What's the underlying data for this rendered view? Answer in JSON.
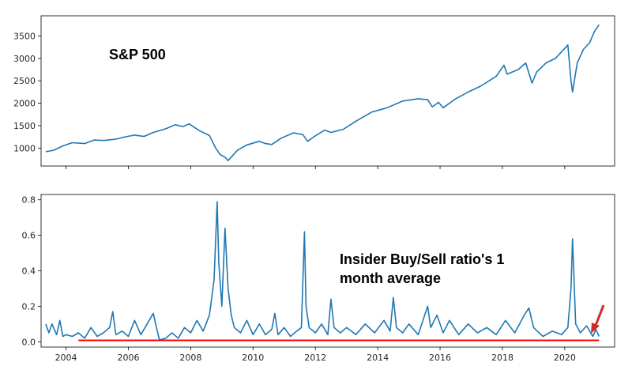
{
  "chart_data": [
    {
      "type": "line",
      "annotation": "S&P 500",
      "xlim": [
        2003.2,
        2021.6
      ],
      "ylim": [
        600,
        3950
      ],
      "y_ticks": [
        1000,
        1500,
        2000,
        2500,
        3000,
        3500
      ],
      "y_tick_labels": [
        "1000",
        "1500",
        "2000",
        "2500",
        "3000",
        "3500"
      ],
      "series": [
        {
          "color": "#1f77b4",
          "x": [
            2003.35,
            2003.6,
            2003.9,
            2004.2,
            2004.6,
            2004.9,
            2005.2,
            2005.6,
            2005.9,
            2006.2,
            2006.5,
            2006.8,
            2007.2,
            2007.5,
            2007.75,
            2007.95,
            2008.3,
            2008.6,
            2008.8,
            2008.95,
            2009.1,
            2009.2,
            2009.5,
            2009.8,
            2010.2,
            2010.4,
            2010.6,
            2010.9,
            2011.3,
            2011.6,
            2011.75,
            2011.95,
            2012.3,
            2012.5,
            2012.9,
            2013.3,
            2013.8,
            2014.3,
            2014.8,
            2015.3,
            2015.6,
            2015.75,
            2015.95,
            2016.1,
            2016.5,
            2016.9,
            2017.3,
            2017.8,
            2018.05,
            2018.15,
            2018.5,
            2018.75,
            2018.95,
            2019.1,
            2019.4,
            2019.7,
            2020.1,
            2020.2,
            2020.25,
            2020.4,
            2020.6,
            2020.8,
            2020.95,
            2021.1
          ],
          "values": [
            920,
            950,
            1050,
            1120,
            1100,
            1180,
            1170,
            1200,
            1250,
            1290,
            1260,
            1350,
            1430,
            1520,
            1480,
            1540,
            1380,
            1280,
            1000,
            850,
            800,
            720,
            950,
            1070,
            1150,
            1100,
            1080,
            1220,
            1340,
            1300,
            1150,
            1250,
            1400,
            1350,
            1420,
            1600,
            1800,
            1900,
            2050,
            2100,
            2080,
            1920,
            2020,
            1900,
            2100,
            2250,
            2380,
            2600,
            2850,
            2650,
            2750,
            2900,
            2450,
            2700,
            2900,
            3000,
            3300,
            2500,
            2250,
            2900,
            3200,
            3350,
            3600,
            3750
          ]
        }
      ]
    },
    {
      "type": "line",
      "annotation": "Insider Buy/Sell ratio's 1 month average",
      "xlim": [
        2003.2,
        2021.6
      ],
      "ylim": [
        -0.03,
        0.83
      ],
      "x_ticks": [
        2004,
        2006,
        2008,
        2010,
        2012,
        2014,
        2016,
        2018,
        2020
      ],
      "x_tick_labels": [
        "2004",
        "2006",
        "2008",
        "2010",
        "2012",
        "2014",
        "2016",
        "2018",
        "2020"
      ],
      "y_ticks": [
        0.0,
        0.2,
        0.4,
        0.6,
        0.8
      ],
      "y_tick_labels": [
        "0.0",
        "0.2",
        "0.4",
        "0.6",
        "0.8"
      ],
      "series": [
        {
          "color": "#1f77b4",
          "x": [
            2003.35,
            2003.45,
            2003.55,
            2003.7,
            2003.8,
            2003.9,
            2004.0,
            2004.2,
            2004.4,
            2004.6,
            2004.8,
            2005.0,
            2005.2,
            2005.4,
            2005.5,
            2005.6,
            2005.8,
            2006.0,
            2006.2,
            2006.4,
            2006.6,
            2006.8,
            2006.9,
            2007.0,
            2007.2,
            2007.4,
            2007.6,
            2007.8,
            2008.0,
            2008.2,
            2008.4,
            2008.6,
            2008.75,
            2008.85,
            2008.9,
            2009.0,
            2009.1,
            2009.2,
            2009.3,
            2009.4,
            2009.6,
            2009.8,
            2010.0,
            2010.2,
            2010.4,
            2010.6,
            2010.7,
            2010.8,
            2011.0,
            2011.2,
            2011.4,
            2011.55,
            2011.65,
            2011.7,
            2011.8,
            2012.0,
            2012.2,
            2012.4,
            2012.5,
            2012.6,
            2012.8,
            2013.0,
            2013.3,
            2013.6,
            2013.9,
            2014.2,
            2014.4,
            2014.5,
            2014.6,
            2014.8,
            2015.0,
            2015.3,
            2015.6,
            2015.7,
            2015.9,
            2016.1,
            2016.3,
            2016.6,
            2016.9,
            2017.2,
            2017.5,
            2017.8,
            2018.1,
            2018.4,
            2018.7,
            2018.85,
            2019.0,
            2019.3,
            2019.6,
            2019.9,
            2020.1,
            2020.2,
            2020.25,
            2020.35,
            2020.5,
            2020.7,
            2020.9,
            2021.0,
            2021.1
          ],
          "values": [
            0.1,
            0.05,
            0.1,
            0.04,
            0.12,
            0.03,
            0.04,
            0.03,
            0.05,
            0.02,
            0.08,
            0.03,
            0.05,
            0.08,
            0.17,
            0.04,
            0.06,
            0.03,
            0.12,
            0.04,
            0.1,
            0.16,
            0.08,
            0.01,
            0.02,
            0.05,
            0.02,
            0.08,
            0.05,
            0.12,
            0.06,
            0.15,
            0.35,
            0.79,
            0.45,
            0.2,
            0.64,
            0.3,
            0.15,
            0.08,
            0.05,
            0.12,
            0.04,
            0.1,
            0.04,
            0.07,
            0.16,
            0.04,
            0.08,
            0.03,
            0.06,
            0.08,
            0.62,
            0.2,
            0.08,
            0.05,
            0.1,
            0.04,
            0.24,
            0.08,
            0.05,
            0.08,
            0.04,
            0.1,
            0.05,
            0.12,
            0.06,
            0.25,
            0.08,
            0.05,
            0.1,
            0.04,
            0.2,
            0.08,
            0.15,
            0.05,
            0.12,
            0.04,
            0.1,
            0.05,
            0.08,
            0.04,
            0.12,
            0.05,
            0.15,
            0.19,
            0.08,
            0.03,
            0.06,
            0.04,
            0.08,
            0.3,
            0.58,
            0.1,
            0.05,
            0.09,
            0.03,
            0.07,
            0.03
          ]
        },
        {
          "color": "#ff0000",
          "x": [
            2004.4,
            2021.1
          ],
          "values": [
            0.008,
            0.008
          ]
        }
      ]
    }
  ]
}
